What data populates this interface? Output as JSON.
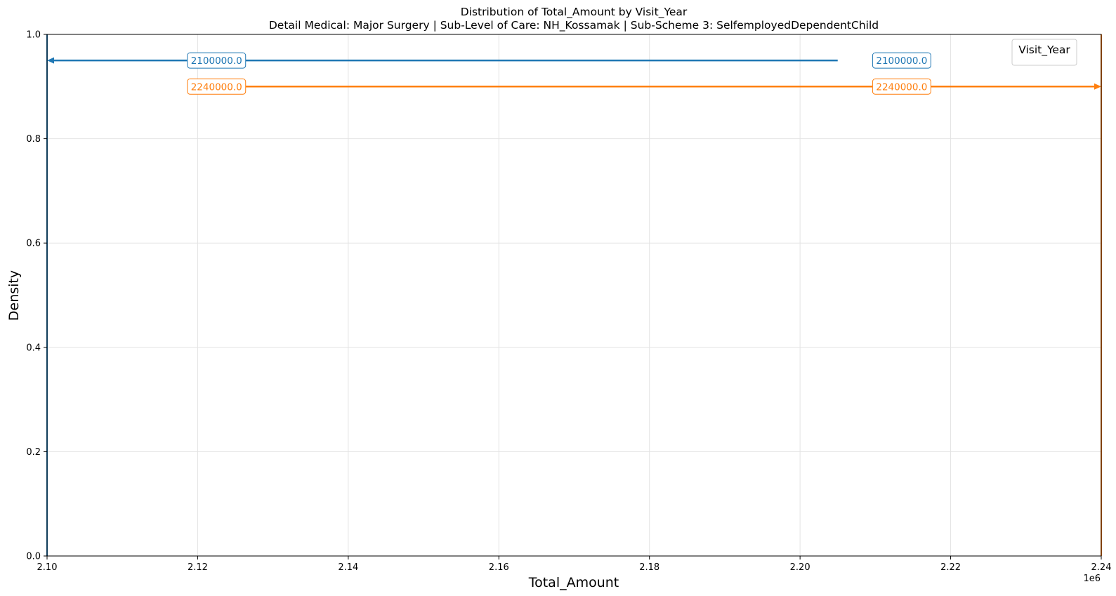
{
  "chart_data": {
    "type": "line",
    "title": "Distribution of Total_Amount by Visit_Year",
    "subtitle": "Detail Medical: Major Surgery | Sub-Level of Care: NH_Kossamak | Sub-Scheme 3: SelfemployedDependentChild",
    "xlabel": "Total_Amount",
    "ylabel": "Density",
    "x_offset_label": "1e6",
    "xlim": [
      2.1,
      2.24
    ],
    "ylim": [
      0.0,
      1.0
    ],
    "x_ticks": [
      {
        "value": 2.1,
        "label": "2.10"
      },
      {
        "value": 2.12,
        "label": "2.12"
      },
      {
        "value": 2.14,
        "label": "2.14"
      },
      {
        "value": 2.16,
        "label": "2.16"
      },
      {
        "value": 2.18,
        "label": "2.18"
      },
      {
        "value": 2.2,
        "label": "2.20"
      },
      {
        "value": 2.22,
        "label": "2.22"
      },
      {
        "value": 2.24,
        "label": "2.24"
      }
    ],
    "y_ticks": [
      {
        "value": 0.0,
        "label": "0.0"
      },
      {
        "value": 0.2,
        "label": "0.2"
      },
      {
        "value": 0.4,
        "label": "0.4"
      },
      {
        "value": 0.6,
        "label": "0.6"
      },
      {
        "value": 0.8,
        "label": "0.8"
      },
      {
        "value": 1.0,
        "label": "1.0"
      }
    ],
    "grid": true,
    "legend": {
      "title": "Visit_Year",
      "placement": "top-right"
    },
    "series": [
      {
        "color": "#1f77b4",
        "vline_x": 2.1,
        "arrow": {
          "from_x": 2.205,
          "to_x": 2.1,
          "y": 0.95
        },
        "annotations": [
          {
            "text": "2100000.0",
            "x": 2.1225,
            "y": 0.95
          },
          {
            "text": "2100000.0",
            "x": 2.2135,
            "y": 0.95
          }
        ]
      },
      {
        "color": "#ff7f0e",
        "vline_x": 2.24,
        "arrow": {
          "from_x": 2.1225,
          "to_x": 2.24,
          "y": 0.9
        },
        "annotations": [
          {
            "text": "2240000.0",
            "x": 2.1225,
            "y": 0.9
          },
          {
            "text": "2240000.0",
            "x": 2.2135,
            "y": 0.9
          }
        ]
      }
    ]
  }
}
